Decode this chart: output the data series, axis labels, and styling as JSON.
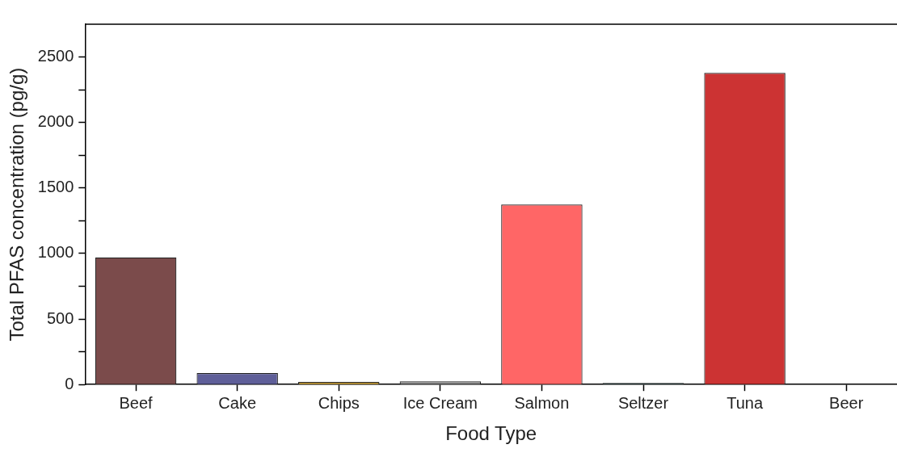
{
  "chart_data": {
    "type": "bar",
    "xlabel": "Food Type",
    "ylabel": "Total PFAS concentration (pg/g)",
    "categories": [
      "Beef",
      "Cake",
      "Chips",
      "Ice Cream",
      "Salmon",
      "Seltzer",
      "Tuna",
      "Beer"
    ],
    "values": [
      970,
      87,
      20,
      25,
      1374,
      12,
      2378,
      0
    ],
    "colors": [
      "#7b4b4b",
      "#5f5f99",
      "#d4a020",
      "#8a8a8a",
      "#ff6666",
      "#2f4f4f",
      "#cc3333",
      "#cc3333"
    ],
    "ylim": [
      0,
      2750
    ],
    "yticks": [
      0,
      {
        "value": 250,
        "label": null
      },
      500,
      {
        "value": 750,
        "label": null
      },
      1000,
      {
        "value": 1250,
        "label": null
      },
      1500,
      {
        "value": 1750,
        "label": null
      },
      2000,
      {
        "value": 2250,
        "label": null
      },
      2500
    ],
    "grid": false,
    "legend": false
  }
}
